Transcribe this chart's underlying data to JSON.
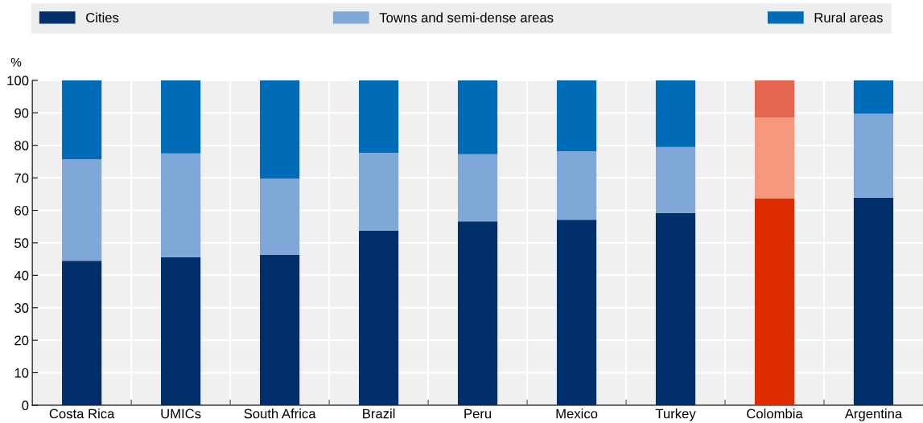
{
  "chart_data": {
    "type": "bar",
    "stacked": true,
    "ylabel": "%",
    "categories": [
      "Costa Rica",
      "UMICs",
      "South Africa",
      "Brazil",
      "Peru",
      "Mexico",
      "Turkey",
      "Colombia",
      "Argentina"
    ],
    "series": [
      {
        "name": "Cities",
        "color": "#002f6c",
        "colors": [
          "#002f6c",
          "#002f6c",
          "#002f6c",
          "#002f6c",
          "#002f6c",
          "#002f6c",
          "#002f6c",
          "#dc2c00",
          "#002f6c"
        ],
        "values": [
          44.5,
          45.6,
          46.3,
          53.7,
          56.6,
          57.1,
          59.2,
          63.7,
          63.9
        ]
      },
      {
        "name": "Towns and semi-dense areas",
        "color": "#7fa8d9",
        "colors": [
          "#7fa8d9",
          "#7fa8d9",
          "#7fa8d9",
          "#7fa8d9",
          "#7fa8d9",
          "#7fa8d9",
          "#7fa8d9",
          "#f5987b",
          "#7fa8d9"
        ],
        "values": [
          31.2,
          31.9,
          23.5,
          24.0,
          20.7,
          21.1,
          20.3,
          24.9,
          25.8
        ]
      },
      {
        "name": "Rural areas",
        "color": "#006bb6",
        "colors": [
          "#006bb6",
          "#006bb6",
          "#006bb6",
          "#006bb6",
          "#006bb6",
          "#006bb6",
          "#006bb6",
          "#e5664e",
          "#006bb6"
        ],
        "values": [
          24.3,
          22.5,
          30.2,
          22.3,
          22.7,
          21.8,
          20.5,
          11.4,
          10.3
        ]
      }
    ],
    "ylim": [
      0,
      100
    ],
    "yticks": [
      0,
      10,
      20,
      30,
      40,
      50,
      60,
      70,
      80,
      90,
      100
    ],
    "grid": true,
    "legend": "top"
  }
}
